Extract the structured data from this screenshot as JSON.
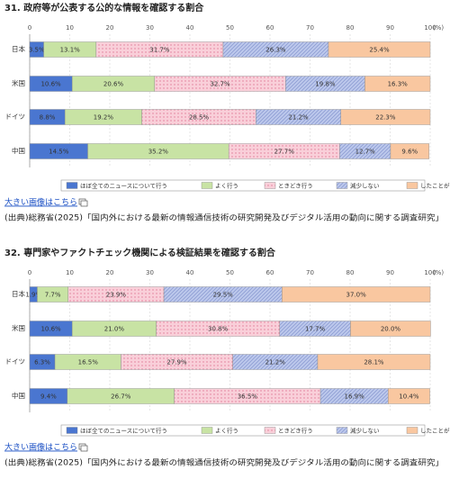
{
  "chart_data": [
    {
      "type": "bar",
      "orientation": "horizontal",
      "stacked": true,
      "title": "31. 政府等が公表する公的な情報を確認する割合",
      "categories": [
        "日本",
        "米国",
        "ドイツ",
        "中国"
      ],
      "xlim": [
        0,
        100
      ],
      "xticks": [
        0,
        10,
        20,
        30,
        40,
        50,
        60,
        70,
        80,
        90,
        100
      ],
      "x_label": "(%)",
      "series": [
        {
          "name": "ほぼ全てのニュースについて行う",
          "color": "#4a76d0",
          "pattern": "solid",
          "values": [
            3.5,
            10.6,
            8.8,
            14.5
          ],
          "value_labels": [
            "3.5%",
            "10.6%",
            "8.8%",
            "14.5%"
          ]
        },
        {
          "name": "よく行う",
          "color": "#c8e3a4",
          "pattern": "solid",
          "values": [
            13.1,
            20.6,
            19.2,
            35.2
          ],
          "value_labels": [
            "13.1%",
            "20.6%",
            "19.2%",
            "35.2%"
          ]
        },
        {
          "name": "ときどき行う",
          "color": "#f9cfd9",
          "pattern": "dots",
          "values": [
            31.7,
            32.7,
            28.5,
            27.7
          ],
          "value_labels": [
            "31.7%",
            "32.7%",
            "28.5%",
            "27.7%"
          ]
        },
        {
          "name": "減少しない",
          "color": "#bcc8ec",
          "pattern": "hatch",
          "values": [
            26.3,
            19.8,
            21.2,
            12.7
          ],
          "value_labels": [
            "26.3%",
            "19.8%",
            "21.2%",
            "12.7%"
          ]
        },
        {
          "name": "したことがない",
          "color": "#f9c7a0",
          "pattern": "solid",
          "values": [
            25.4,
            16.3,
            22.3,
            9.6
          ],
          "value_labels": [
            "25.4%",
            "16.3%",
            "22.3%",
            "9.6%"
          ]
        }
      ],
      "link_text": "大きい画像はこちら",
      "source": "(出典)総務省(2025)「国内外における最新の情報通信技術の研究開発及びデジタル活用の動向に関する調査研究」"
    },
    {
      "type": "bar",
      "orientation": "horizontal",
      "stacked": true,
      "title": "32. 専門家やファクトチェック機関による検証結果を確認する割合",
      "categories": [
        "日本",
        "米国",
        "ドイツ",
        "中国"
      ],
      "xlim": [
        0,
        100
      ],
      "xticks": [
        0,
        10,
        20,
        30,
        40,
        50,
        60,
        70,
        80,
        90,
        100
      ],
      "x_label": "(%)",
      "series": [
        {
          "name": "ほぼ全てのニュースについて行う",
          "color": "#4a76d0",
          "pattern": "solid",
          "values": [
            1.9,
            10.6,
            6.3,
            9.4
          ],
          "value_labels": [
            "1.9%",
            "10.6%",
            "6.3%",
            "9.4%"
          ]
        },
        {
          "name": "よく行う",
          "color": "#c8e3a4",
          "pattern": "solid",
          "values": [
            7.7,
            21.0,
            16.5,
            26.7
          ],
          "value_labels": [
            "7.7%",
            "21.0%",
            "16.5%",
            "26.7%"
          ]
        },
        {
          "name": "ときどき行う",
          "color": "#f9cfd9",
          "pattern": "dots",
          "values": [
            23.9,
            30.8,
            27.9,
            36.5
          ],
          "value_labels": [
            "23.9%",
            "30.8%",
            "27.9%",
            "36.5%"
          ]
        },
        {
          "name": "減少しない",
          "color": "#bcc8ec",
          "pattern": "hatch",
          "values": [
            29.5,
            17.7,
            21.2,
            16.9
          ],
          "value_labels": [
            "29.5%",
            "17.7%",
            "21.2%",
            "16.9%"
          ]
        },
        {
          "name": "したことがない",
          "color": "#f9c7a0",
          "pattern": "solid",
          "values": [
            37.0,
            20.0,
            28.1,
            10.4
          ],
          "value_labels": [
            "37.0%",
            "20.0%",
            "28.1%",
            "10.4%"
          ]
        }
      ],
      "link_text": "大きい画像はこちら",
      "source": "(出典)総務省(2025)「国内外における最新の情報通信技術の研究開発及びデジタル活用の動向に関する調査研究」"
    }
  ]
}
